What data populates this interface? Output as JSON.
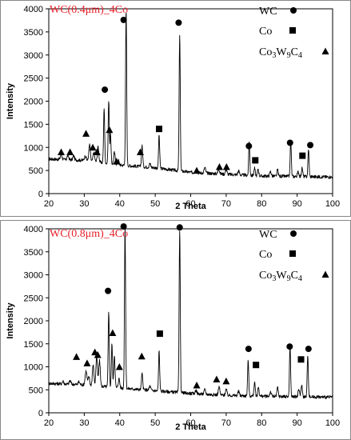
{
  "colors": {
    "line": "#000000",
    "title": "#e8212b",
    "frame": "#000000",
    "panel_border": "#888888"
  },
  "chart_data": [
    {
      "type": "line",
      "title": "WC(0.4μm)_4Co",
      "xlabel": "2 Theta",
      "ylabel": "Intensity",
      "xlim": [
        20,
        100
      ],
      "ylim": [
        0,
        4000
      ],
      "x_ticks": [
        "20",
        "30",
        "40",
        "50",
        "60",
        "70",
        "80",
        "90",
        "100"
      ],
      "y_ticks": [
        "0",
        "500",
        "1000",
        "1500",
        "2000",
        "2500",
        "3000",
        "3500",
        "4000"
      ],
      "grid": false,
      "legend_position": "top-right",
      "legend": [
        {
          "label": "WC",
          "marker": "circle"
        },
        {
          "label": "Co",
          "marker": "square"
        },
        {
          "label": "Co3W9C4",
          "marker": "triangle"
        }
      ],
      "pattern": {
        "baseline": [
          [
            20,
            750
          ],
          [
            30,
            720
          ],
          [
            40,
            620
          ],
          [
            50,
            560
          ],
          [
            60,
            460
          ],
          [
            70,
            420
          ],
          [
            80,
            380
          ],
          [
            90,
            370
          ],
          [
            100,
            360
          ]
        ],
        "peaks": [
          [
            23.5,
            120,
            0.3
          ],
          [
            25.4,
            100,
            0.3
          ],
          [
            27.0,
            90,
            0.3
          ],
          [
            30.3,
            100,
            0.35
          ],
          [
            31.5,
            350,
            0.3
          ],
          [
            32.7,
            200,
            0.3
          ],
          [
            33.9,
            330,
            0.3
          ],
          [
            35.6,
            1200,
            0.22
          ],
          [
            36.9,
            1350,
            0.22
          ],
          [
            37.4,
            650,
            0.2
          ],
          [
            38.5,
            250,
            0.3
          ],
          [
            39.6,
            100,
            0.3
          ],
          [
            41.8,
            3380,
            0.22
          ],
          [
            46.3,
            450,
            0.25
          ],
          [
            48.5,
            80,
            0.3
          ],
          [
            51.1,
            720,
            0.22
          ],
          [
            56.9,
            2950,
            0.22
          ],
          [
            61.5,
            80,
            0.3
          ],
          [
            64.0,
            120,
            0.3
          ],
          [
            67.9,
            110,
            0.3
          ],
          [
            70.0,
            100,
            0.3
          ],
          [
            73.5,
            90,
            0.3
          ],
          [
            76.5,
            750,
            0.22
          ],
          [
            78.0,
            160,
            0.25
          ],
          [
            79.0,
            150,
            0.25
          ],
          [
            82.5,
            100,
            0.3
          ],
          [
            84.5,
            140,
            0.25
          ],
          [
            88.2,
            780,
            0.22
          ],
          [
            90.3,
            100,
            0.3
          ],
          [
            91.4,
            180,
            0.25
          ],
          [
            93.2,
            600,
            0.22
          ]
        ]
      },
      "markers": [
        {
          "shape": "triangle",
          "x": 23.5,
          "y": 900
        },
        {
          "shape": "triangle",
          "x": 26.0,
          "y": 900
        },
        {
          "shape": "triangle",
          "x": 30.5,
          "y": 1300
        },
        {
          "shape": "triangle",
          "x": 32.4,
          "y": 1000
        },
        {
          "shape": "triangle",
          "x": 33.6,
          "y": 900
        },
        {
          "shape": "triangle",
          "x": 37.1,
          "y": 1380
        },
        {
          "shape": "triangle",
          "x": 39.1,
          "y": 700
        },
        {
          "shape": "triangle",
          "x": 45.8,
          "y": 900
        },
        {
          "shape": "triangle",
          "x": 61.7,
          "y": 500
        },
        {
          "shape": "triangle",
          "x": 68.1,
          "y": 580
        },
        {
          "shape": "triangle",
          "x": 70.1,
          "y": 580
        },
        {
          "shape": "square",
          "x": 51.1,
          "y": 1400
        },
        {
          "shape": "square",
          "x": 78.2,
          "y": 720
        },
        {
          "shape": "square",
          "x": 91.5,
          "y": 820
        },
        {
          "shape": "circle",
          "x": 35.8,
          "y": 2250
        },
        {
          "shape": "circle",
          "x": 41.1,
          "y": 3760
        },
        {
          "shape": "circle",
          "x": 56.6,
          "y": 3700
        },
        {
          "shape": "circle",
          "x": 76.4,
          "y": 1030
        },
        {
          "shape": "circle",
          "x": 88.0,
          "y": 1100
        },
        {
          "shape": "circle",
          "x": 93.7,
          "y": 1050
        }
      ]
    },
    {
      "type": "line",
      "title": "WC(0.8μm)_4Co",
      "xlabel": "2 Theta",
      "ylabel": "Intensity",
      "xlim": [
        20,
        100
      ],
      "ylim": [
        0,
        4000
      ],
      "x_ticks": [
        "20",
        "30",
        "40",
        "50",
        "60",
        "70",
        "80",
        "90",
        "100"
      ],
      "y_ticks": [
        "0",
        "500",
        "1000",
        "1500",
        "2000",
        "2500",
        "3000",
        "3500",
        "4000"
      ],
      "grid": false,
      "legend_position": "top-right",
      "legend": [
        {
          "label": "WC",
          "marker": "circle"
        },
        {
          "label": "Co",
          "marker": "square"
        },
        {
          "label": "Co3W9C4",
          "marker": "triangle"
        }
      ],
      "pattern": {
        "baseline": [
          [
            20,
            640
          ],
          [
            30,
            610
          ],
          [
            40,
            540
          ],
          [
            50,
            480
          ],
          [
            60,
            420
          ],
          [
            70,
            380
          ],
          [
            80,
            360
          ],
          [
            90,
            350
          ],
          [
            100,
            340
          ]
        ],
        "peaks": [
          [
            24.0,
            60,
            0.3
          ],
          [
            26.0,
            80,
            0.3
          ],
          [
            28.5,
            60,
            0.3
          ],
          [
            30.5,
            300,
            0.35
          ],
          [
            31.3,
            180,
            0.3
          ],
          [
            32.5,
            450,
            0.3
          ],
          [
            33.5,
            650,
            0.3
          ],
          [
            34.3,
            550,
            0.3
          ],
          [
            36.9,
            1620,
            0.22
          ],
          [
            37.8,
            950,
            0.22
          ],
          [
            38.5,
            700,
            0.25
          ],
          [
            39.8,
            200,
            0.3
          ],
          [
            41.5,
            3500,
            0.22
          ],
          [
            46.3,
            350,
            0.25
          ],
          [
            48.5,
            90,
            0.3
          ],
          [
            51.1,
            880,
            0.22
          ],
          [
            56.9,
            3560,
            0.22
          ],
          [
            61.5,
            80,
            0.3
          ],
          [
            64.0,
            100,
            0.3
          ],
          [
            68.0,
            170,
            0.3
          ],
          [
            70.0,
            130,
            0.3
          ],
          [
            73.5,
            90,
            0.3
          ],
          [
            76.2,
            780,
            0.22
          ],
          [
            78.0,
            300,
            0.25
          ],
          [
            79.1,
            200,
            0.25
          ],
          [
            82.5,
            100,
            0.3
          ],
          [
            84.5,
            200,
            0.25
          ],
          [
            88.0,
            1100,
            0.22
          ],
          [
            90.5,
            150,
            0.3
          ],
          [
            91.3,
            250,
            0.25
          ],
          [
            93.0,
            920,
            0.22
          ]
        ]
      },
      "markers": [
        {
          "shape": "triangle",
          "x": 27.8,
          "y": 1220
        },
        {
          "shape": "triangle",
          "x": 30.8,
          "y": 1080
        },
        {
          "shape": "triangle",
          "x": 33.0,
          "y": 1320
        },
        {
          "shape": "triangle",
          "x": 33.8,
          "y": 1260
        },
        {
          "shape": "triangle",
          "x": 38.0,
          "y": 1740
        },
        {
          "shape": "triangle",
          "x": 39.9,
          "y": 1000
        },
        {
          "shape": "triangle",
          "x": 46.2,
          "y": 1230
        },
        {
          "shape": "triangle",
          "x": 61.7,
          "y": 600
        },
        {
          "shape": "triangle",
          "x": 67.3,
          "y": 730
        },
        {
          "shape": "triangle",
          "x": 70.0,
          "y": 690
        },
        {
          "shape": "square",
          "x": 51.3,
          "y": 1720
        },
        {
          "shape": "square",
          "x": 78.4,
          "y": 1040
        },
        {
          "shape": "square",
          "x": 91.1,
          "y": 1160
        },
        {
          "shape": "circle",
          "x": 36.7,
          "y": 2650
        },
        {
          "shape": "circle",
          "x": 41.1,
          "y": 4050
        },
        {
          "shape": "circle",
          "x": 56.9,
          "y": 4030
        },
        {
          "shape": "circle",
          "x": 76.3,
          "y": 1390
        },
        {
          "shape": "circle",
          "x": 87.9,
          "y": 1440
        },
        {
          "shape": "circle",
          "x": 93.2,
          "y": 1390
        }
      ]
    }
  ]
}
